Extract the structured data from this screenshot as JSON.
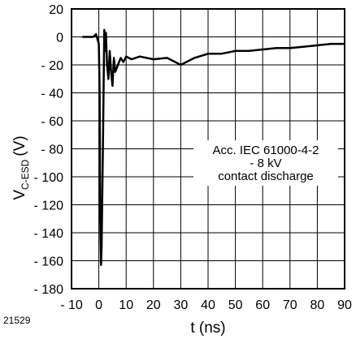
{
  "figure_id": "21529",
  "chart_data": {
    "type": "line",
    "ylabel_main": "V",
    "ylabel_sub": "C-ESD",
    "ylabel_unit": "(V)",
    "xlabel": "t (ns)",
    "xlim": [
      -10,
      90
    ],
    "ylim": [
      -180,
      20
    ],
    "xticks": [
      -10,
      0,
      10,
      20,
      30,
      40,
      50,
      60,
      70,
      80,
      90
    ],
    "yticks": [
      20,
      0,
      -20,
      -40,
      -60,
      -80,
      -100,
      -120,
      -140,
      -160,
      -180
    ],
    "xtick_labels": [
      "- 10",
      "0",
      "10",
      "20",
      "30",
      "40",
      "50",
      "60",
      "70",
      "80",
      "90"
    ],
    "ytick_labels": [
      "20",
      "0",
      "- 20",
      "- 40",
      "- 60",
      "- 80",
      "- 100",
      "- 120",
      "- 140",
      "- 160",
      "- 180"
    ],
    "grid": true,
    "annotation": [
      "Acc. IEC 61000-4-2",
      "- 8 kV",
      "contact discharge"
    ],
    "line_color": "#000000",
    "series": [
      {
        "x": [
          -6,
          -4,
          -2,
          -1,
          0,
          0.3,
          0.5,
          0.8,
          1,
          1.5,
          2,
          2.3,
          2.6,
          3,
          3.5,
          4,
          4.5,
          5,
          5.5,
          6,
          7,
          8,
          9,
          10,
          12,
          15,
          20,
          25,
          30,
          35,
          40,
          45,
          50,
          55,
          60,
          65,
          70,
          75,
          80,
          85,
          90
        ],
        "y": [
          0,
          0,
          0,
          2,
          -5,
          -40,
          -130,
          -163,
          -150,
          -80,
          5,
          -10,
          3,
          -20,
          -30,
          -10,
          -25,
          -35,
          -15,
          -25,
          -20,
          -15,
          -18,
          -14,
          -16,
          -14,
          -16,
          -15,
          -20,
          -15,
          -12,
          -12,
          -10,
          -10,
          -9,
          -8,
          -8,
          -7,
          -6,
          -5,
          -5
        ]
      }
    ]
  }
}
